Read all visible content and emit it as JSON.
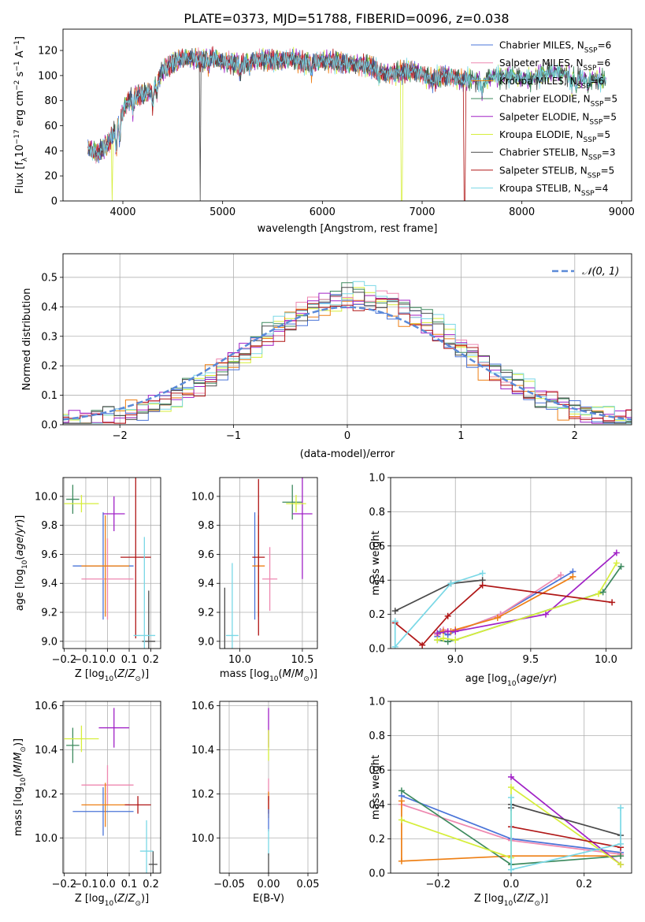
{
  "figure_title": "PLATE=0373, MJD=51788, FIBERID=0096, z=0.038",
  "colors": {
    "Chabrier MILES": "#4a74d8",
    "Salpeter MILES": "#ee88b0",
    "Kroupa MILES": "#ee7f14",
    "Chabrier ELODIE": "#3d8a5e",
    "Salpeter ELODIE": "#a021c6",
    "Kroupa ELODIE": "#d6ee3a",
    "Chabrier STELIB": "#4a4a4a",
    "Salpeter STELIB": "#b01717",
    "Kroupa STELIB": "#7ad8e6"
  },
  "chart_data": [
    {
      "id": "spectrum",
      "type": "line",
      "title": "PLATE=0373, MJD=51788, FIBERID=0096, z=0.038",
      "xlabel": "wavelength [Angstrom, rest frame]",
      "ylabel": "Flux [f",
      "xlim": [
        3400,
        9100
      ],
      "ylim": [
        0,
        137
      ],
      "xticks": [
        4000,
        5000,
        6000,
        7000,
        8000,
        9000
      ],
      "yticks": [
        0,
        20,
        40,
        60,
        80,
        100,
        120
      ],
      "legend": [
        {
          "label": "Chabrier MILES, N",
          "n": "6"
        },
        {
          "label": "Salpeter MILES, N",
          "n": "6"
        },
        {
          "label": "Kroupa MILES, N",
          "n": "6"
        },
        {
          "label": "Chabrier ELODIE, N",
          "n": "5"
        },
        {
          "label": "Salpeter ELODIE, N",
          "n": "5"
        },
        {
          "label": "Kroupa ELODIE, N",
          "n": "5"
        },
        {
          "label": "Chabrier STELIB, N",
          "n": "3"
        },
        {
          "label": "Salpeter STELIB, N",
          "n": "5"
        },
        {
          "label": "Kroupa STELIB, N",
          "n": "4"
        }
      ],
      "legend_sub": "SSP",
      "legend_placement": "upper right",
      "continuum": [
        [
          3650,
          42
        ],
        [
          3750,
          38
        ],
        [
          3850,
          45
        ],
        [
          3950,
          62
        ],
        [
          4050,
          80
        ],
        [
          4150,
          84
        ],
        [
          4300,
          88
        ],
        [
          4400,
          104
        ],
        [
          4500,
          110
        ],
        [
          4600,
          114
        ],
        [
          4700,
          114
        ],
        [
          4800,
          112
        ],
        [
          4900,
          115
        ],
        [
          5000,
          111
        ],
        [
          5100,
          110
        ],
        [
          5200,
          109
        ],
        [
          5300,
          112
        ],
        [
          5400,
          113
        ],
        [
          5500,
          112
        ],
        [
          5600,
          112
        ],
        [
          5700,
          114
        ],
        [
          5800,
          110
        ],
        [
          5900,
          110
        ],
        [
          6000,
          112
        ],
        [
          6100,
          111
        ],
        [
          6200,
          110
        ],
        [
          6300,
          109
        ],
        [
          6400,
          108
        ],
        [
          6500,
          107
        ],
        [
          6600,
          102
        ],
        [
          6700,
          101
        ],
        [
          6800,
          103
        ],
        [
          6900,
          104
        ],
        [
          7000,
          101
        ],
        [
          7100,
          96
        ],
        [
          7200,
          100
        ],
        [
          7300,
          99
        ],
        [
          7400,
          96
        ],
        [
          7500,
          98
        ],
        [
          7600,
          94
        ],
        [
          7700,
          100
        ],
        [
          7800,
          99
        ],
        [
          7900,
          100
        ],
        [
          8000,
          98
        ],
        [
          8100,
          97
        ],
        [
          8200,
          101
        ],
        [
          8300,
          103
        ],
        [
          8400,
          102
        ],
        [
          8500,
          99
        ],
        [
          8600,
          98
        ],
        [
          8700,
          97
        ],
        [
          8800,
          96
        ],
        [
          8850,
          97
        ]
      ],
      "dropouts": [
        {
          "series": "Kroupa ELODIE",
          "x": 3895
        },
        {
          "series": "Chabrier STELIB",
          "x": 4775
        },
        {
          "series": "Kroupa ELODIE",
          "x": 6795
        },
        {
          "series": "Salpeter STELIB",
          "x": 7425
        }
      ]
    },
    {
      "id": "residuals",
      "type": "histogram",
      "xlabel": "(data-model)/error",
      "ylabel": "Normed distribution",
      "xlim": [
        -2.5,
        2.5
      ],
      "ylim": [
        0,
        0.58
      ],
      "xticks": [
        -2,
        -1,
        0,
        1,
        2
      ],
      "xticklabels": [
        "−2",
        "−1",
        "0",
        "1",
        "2"
      ],
      "yticks": [
        0.0,
        0.1,
        0.2,
        0.3,
        0.4,
        0.5
      ],
      "yticklabels": [
        "0.0",
        "0.1",
        "0.2",
        "0.3",
        "0.4",
        "0.5"
      ],
      "bin_width": 0.1,
      "grid": true,
      "reference_curve": "Gaussian N(0,1)",
      "legend": [
        {
          "label": "𝒩(0, 1)"
        }
      ],
      "legend_placement": "upper right"
    },
    {
      "id": "age_vs_Z",
      "type": "errorbar",
      "xlabel": "Z [log",
      "ylabel": "age  [log",
      "xlim": [
        -0.205,
        0.245
      ],
      "ylim": [
        8.95,
        10.13
      ],
      "xticks": [
        -0.2,
        -0.1,
        0.0,
        0.1,
        0.2
      ],
      "xticklabels": [
        "−0.2",
        "−0.1",
        "0.0",
        "0.1",
        "0.2"
      ],
      "yticks": [
        9.0,
        9.2,
        9.4,
        9.6,
        9.8,
        10.0
      ],
      "yticklabels": [
        "9.0",
        "9.2",
        "9.4",
        "9.6",
        "9.8",
        "10.0"
      ],
      "points": [
        {
          "series": "Chabrier MILES",
          "x": -0.02,
          "y": 9.52,
          "xerr": 0.14,
          "yerr": 0.37
        },
        {
          "series": "Salpeter MILES",
          "x": 0.0,
          "y": 9.43,
          "xerr": 0.12,
          "yerr": 0.28
        },
        {
          "series": "Kroupa MILES",
          "x": -0.01,
          "y": 9.52,
          "xerr": 0.11,
          "yerr": 0.35
        },
        {
          "series": "Chabrier ELODIE",
          "x": -0.16,
          "y": 9.98,
          "xerr": 0.03,
          "yerr": 0.1
        },
        {
          "series": "Salpeter ELODIE",
          "x": 0.03,
          "y": 9.88,
          "xerr": 0.05,
          "yerr": 0.12
        },
        {
          "series": "Kroupa ELODIE",
          "x": -0.12,
          "y": 9.95,
          "xerr": 0.08,
          "yerr": 0.06
        },
        {
          "series": "Chabrier STELIB",
          "x": 0.19,
          "y": 9.0,
          "xerr": 0.03,
          "yerr": 0.35
        },
        {
          "series": "Salpeter STELIB",
          "x": 0.13,
          "y": 9.58,
          "xerr": 0.07,
          "yerr": 0.56
        },
        {
          "series": "Kroupa STELIB",
          "x": 0.17,
          "y": 9.04,
          "xerr": 0.05,
          "yerr": 0.68
        }
      ]
    },
    {
      "id": "age_vs_mass",
      "type": "errorbar",
      "xlabel": "mass [log",
      "ylabel": "",
      "xlim": [
        9.84,
        10.62
      ],
      "ylim": [
        8.95,
        10.13
      ],
      "xticks": [
        10.0,
        10.5
      ],
      "xticklabels": [
        "10.0",
        "10.5"
      ],
      "yticks": [
        9.0,
        9.2,
        9.4,
        9.6,
        9.8,
        10.0
      ],
      "yticklabels": [
        "9.0",
        "9.2",
        "9.4",
        "9.6",
        "9.8",
        "10.0"
      ],
      "points": [
        {
          "series": "Chabrier MILES",
          "x": 10.12,
          "y": 9.52,
          "xerr": 0.01,
          "yerr": 0.37
        },
        {
          "series": "Salpeter MILES",
          "x": 10.24,
          "y": 9.43,
          "xerr": 0.06,
          "yerr": 0.22
        },
        {
          "series": "Kroupa MILES",
          "x": 10.15,
          "y": 9.52,
          "xerr": 0.05,
          "yerr": 0.35
        },
        {
          "series": "Chabrier ELODIE",
          "x": 10.42,
          "y": 9.96,
          "xerr": 0.08,
          "yerr": 0.12
        },
        {
          "series": "Salpeter ELODIE",
          "x": 10.5,
          "y": 9.88,
          "xerr": 0.08,
          "yerr": 0.45
        },
        {
          "series": "Kroupa ELODIE",
          "x": 10.45,
          "y": 9.95,
          "xerr": 0.08,
          "yerr": 0.06
        },
        {
          "series": "Chabrier STELIB",
          "x": 9.88,
          "y": 9.0,
          "xerr": 0.0,
          "yerr": 0.37
        },
        {
          "series": "Salpeter STELIB",
          "x": 10.15,
          "y": 9.58,
          "xerr": 0.05,
          "yerr": 0.54
        },
        {
          "series": "Kroupa STELIB",
          "x": 9.94,
          "y": 9.04,
          "xerr": 0.05,
          "yerr": 0.5
        }
      ]
    },
    {
      "id": "massweight_vs_age",
      "type": "line",
      "xlabel": "age  [log",
      "ylabel": "mass weight",
      "xlim": [
        8.57,
        10.17
      ],
      "ylim": [
        0,
        1.0
      ],
      "xticks": [
        9.0,
        9.5,
        10.0
      ],
      "xticklabels": [
        "9.0",
        "9.5",
        "10.0"
      ],
      "yticks": [
        0.0,
        0.2,
        0.4,
        0.6,
        0.8,
        1.0
      ],
      "yticklabels": [
        "0.0",
        "0.2",
        "0.4",
        "0.6",
        "0.8",
        "1.0"
      ],
      "series": [
        {
          "name": "Chabrier MILES",
          "x": [
            8.88,
            8.9,
            8.95,
            9.0,
            9.3,
            9.78
          ],
          "y": [
            0.07,
            0.1,
            0.08,
            0.1,
            0.2,
            0.45
          ]
        },
        {
          "name": "Salpeter MILES",
          "x": [
            8.88,
            8.92,
            8.97,
            9.0,
            9.3,
            9.7
          ],
          "y": [
            0.08,
            0.11,
            0.1,
            0.1,
            0.2,
            0.43
          ]
        },
        {
          "name": "Kroupa MILES",
          "x": [
            8.88,
            8.92,
            8.97,
            9.0,
            9.28,
            9.78
          ],
          "y": [
            0.09,
            0.1,
            0.1,
            0.11,
            0.18,
            0.42
          ]
        },
        {
          "name": "Chabrier ELODIE",
          "x": [
            8.88,
            8.95,
            9.0,
            9.98,
            10.1
          ],
          "y": [
            0.05,
            0.04,
            0.05,
            0.33,
            0.48
          ]
        },
        {
          "name": "Salpeter ELODIE",
          "x": [
            8.88,
            8.95,
            9.0,
            9.6,
            10.07
          ],
          "y": [
            0.09,
            0.1,
            0.1,
            0.2,
            0.56
          ]
        },
        {
          "name": "Kroupa ELODIE",
          "x": [
            8.88,
            8.92,
            9.0,
            9.95,
            10.07
          ],
          "y": [
            0.05,
            0.06,
            0.05,
            0.32,
            0.5
          ]
        },
        {
          "name": "Chabrier STELIB",
          "x": [
            8.6,
            8.97,
            9.18
          ],
          "y": [
            0.22,
            0.38,
            0.4
          ]
        },
        {
          "name": "Salpeter STELIB",
          "x": [
            8.6,
            8.78,
            8.95,
            9.18,
            10.04
          ],
          "y": [
            0.15,
            0.02,
            0.19,
            0.37,
            0.27
          ]
        },
        {
          "name": "Kroupa STELIB",
          "x": [
            8.6,
            8.6,
            8.97,
            9.18
          ],
          "y": [
            0.16,
            0.01,
            0.38,
            0.44
          ]
        }
      ]
    },
    {
      "id": "mass_vs_Z",
      "type": "errorbar",
      "xlabel": "Z [log",
      "ylabel": "mass [log",
      "xlim": [
        -0.205,
        0.245
      ],
      "ylim": [
        9.84,
        10.62
      ],
      "xticks": [
        -0.2,
        -0.1,
        0.0,
        0.1,
        0.2
      ],
      "xticklabels": [
        "−0.2",
        "−0.1",
        "0.0",
        "0.1",
        "0.2"
      ],
      "yticks": [
        10.0,
        10.2,
        10.4,
        10.6
      ],
      "yticklabels": [
        "10.0",
        "10.2",
        "10.4",
        "10.6"
      ],
      "points": [
        {
          "series": "Chabrier MILES",
          "x": -0.02,
          "y": 10.12,
          "xerr": 0.14,
          "yerr": 0.11
        },
        {
          "series": "Salpeter MILES",
          "x": 0.0,
          "y": 10.24,
          "xerr": 0.12,
          "yerr": 0.09
        },
        {
          "series": "Kroupa MILES",
          "x": -0.01,
          "y": 10.15,
          "xerr": 0.11,
          "yerr": 0.1
        },
        {
          "series": "Chabrier ELODIE",
          "x": -0.16,
          "y": 10.42,
          "xerr": 0.03,
          "yerr": 0.08
        },
        {
          "series": "Salpeter ELODIE",
          "x": 0.03,
          "y": 10.5,
          "xerr": 0.07,
          "yerr": 0.09
        },
        {
          "series": "Kroupa ELODIE",
          "x": -0.12,
          "y": 10.45,
          "xerr": 0.08,
          "yerr": 0.06
        },
        {
          "series": "Chabrier STELIB",
          "x": 0.21,
          "y": 9.88,
          "xerr": 0.02,
          "yerr": 0.06
        },
        {
          "series": "Salpeter STELIB",
          "x": 0.14,
          "y": 10.15,
          "xerr": 0.06,
          "yerr": 0.04
        },
        {
          "series": "Kroupa STELIB",
          "x": 0.18,
          "y": 9.94,
          "xerr": 0.03,
          "yerr": 0.14
        }
      ]
    },
    {
      "id": "mass_vs_ebv",
      "type": "errorbar",
      "xlabel": "E(B-V)",
      "ylabel": "",
      "xlim": [
        -0.062,
        0.062
      ],
      "ylim": [
        9.84,
        10.62
      ],
      "xticks": [
        -0.05,
        0.0,
        0.05
      ],
      "xticklabels": [
        "−0.05",
        "0.00",
        "0.05"
      ],
      "yticks": [
        10.0,
        10.2,
        10.4,
        10.6
      ],
      "yticklabels": [
        "10.0",
        "10.2",
        "10.4",
        "10.6"
      ],
      "points": [
        {
          "series": "Salpeter ELODIE",
          "x": 0.0,
          "y": 10.5,
          "xerr": 0.0,
          "yerr": 0.09
        },
        {
          "series": "Kroupa ELODIE",
          "x": 0.0,
          "y": 10.42,
          "xerr": 0.0,
          "yerr": 0.07
        },
        {
          "series": "Salpeter MILES",
          "x": 0.0,
          "y": 10.22,
          "xerr": 0.0,
          "yerr": 0.05
        },
        {
          "series": "Kroupa MILES",
          "x": 0.0,
          "y": 10.15,
          "xerr": 0.0,
          "yerr": 0.06
        },
        {
          "series": "Salpeter STELIB",
          "x": 0.0,
          "y": 10.15,
          "xerr": 0.0,
          "yerr": 0.04
        },
        {
          "series": "Chabrier MILES",
          "x": 0.0,
          "y": 10.08,
          "xerr": 0.0,
          "yerr": 0.05
        },
        {
          "series": "Kroupa STELIB",
          "x": 0.0,
          "y": 9.98,
          "xerr": 0.0,
          "yerr": 0.06
        },
        {
          "series": "Chabrier STELIB",
          "x": 0.0,
          "y": 9.88,
          "xerr": 0.0,
          "yerr": 0.05
        }
      ]
    },
    {
      "id": "massweight_vs_Z",
      "type": "line",
      "xlabel": "Z [log",
      "ylabel": "mass weight",
      "xlim": [
        -0.33,
        0.33
      ],
      "ylim": [
        0,
        1.0
      ],
      "xticks": [
        -0.2,
        0.0,
        0.2
      ],
      "xticklabels": [
        "−0.2",
        "0.0",
        "0.2"
      ],
      "yticks": [
        0.0,
        0.2,
        0.4,
        0.6,
        0.8,
        1.0
      ],
      "yticklabels": [
        "0.0",
        "0.2",
        "0.4",
        "0.6",
        "0.8",
        "1.0"
      ],
      "series": [
        {
          "name": "Chabrier MILES",
          "x": [
            -0.3,
            0.0,
            0.3
          ],
          "y": [
            0.45,
            0.2,
            0.12
          ]
        },
        {
          "name": "Salpeter MILES",
          "x": [
            -0.3,
            0.0,
            0.3
          ],
          "y": [
            0.4,
            0.19,
            0.11
          ]
        },
        {
          "name": "Kroupa MILES",
          "x": [
            -0.3,
            -0.3,
            0.0,
            0.3
          ],
          "y": [
            0.42,
            0.07,
            0.1,
            0.1
          ]
        },
        {
          "name": "Chabrier ELODIE",
          "x": [
            -0.3,
            0.0,
            0.3
          ],
          "y": [
            0.48,
            0.05,
            0.1
          ]
        },
        {
          "name": "Salpeter ELODIE",
          "x": [
            0.0,
            0.3
          ],
          "y": [
            0.56,
            0.05
          ]
        },
        {
          "name": "Kroupa ELODIE",
          "x": [
            -0.3,
            0.0,
            0.0,
            0.3
          ],
          "y": [
            0.31,
            0.09,
            0.5,
            0.05
          ]
        },
        {
          "name": "Chabrier STELIB",
          "x": [
            0.0,
            0.0,
            0.3
          ],
          "y": [
            0.38,
            0.4,
            0.22
          ]
        },
        {
          "name": "Salpeter STELIB",
          "x": [
            0.0,
            0.3
          ],
          "y": [
            0.27,
            0.15
          ]
        },
        {
          "name": "Kroupa STELIB",
          "x": [
            0.0,
            0.0,
            0.3,
            0.3
          ],
          "y": [
            0.44,
            0.02,
            0.17,
            0.38
          ]
        }
      ]
    }
  ]
}
